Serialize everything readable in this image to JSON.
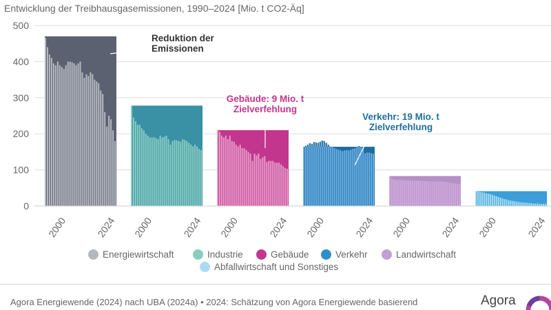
{
  "title": "Entwicklung der Treibhausgasemissionen, 1990–2024 [Mio. t CO2-Äq]",
  "source": "Agora Energiewende (2024) nach UBA (2024a) • 2024: Schätzung von Agora Energiewende basierend",
  "logo": "Agora",
  "chart_data": {
    "type": "bar",
    "title": "Entwicklung der Treibhausgasemissionen, 1990–2024 [Mio. t CO2-Äq]",
    "ylim": [
      0,
      500
    ],
    "yticks": [
      0,
      100,
      200,
      300,
      400,
      500
    ],
    "xticks": [
      "2000",
      "2024"
    ],
    "grid": true,
    "legend_position": "bottom",
    "series": [
      {
        "name": "Energiewirtschaft",
        "color": "#b4b9bf",
        "gap_color": "#5c6172",
        "reference": 470,
        "x": [
          1990,
          1991,
          1992,
          1993,
          1994,
          1995,
          1996,
          1997,
          1998,
          1999,
          2000,
          2001,
          2002,
          2003,
          2004,
          2005,
          2006,
          2007,
          2008,
          2009,
          2010,
          2011,
          2012,
          2013,
          2014,
          2015,
          2016,
          2017,
          2018,
          2019,
          2020,
          2021,
          2022,
          2023,
          2024
        ],
        "values": [
          466,
          440,
          420,
          410,
          395,
          390,
          400,
          390,
          385,
          380,
          390,
          400,
          400,
          398,
          395,
          390,
          395,
          400,
          370,
          355,
          365,
          360,
          370,
          365,
          350,
          345,
          340,
          320,
          310,
          260,
          220,
          250,
          240,
          210,
          180
        ]
      },
      {
        "name": "Industrie",
        "color": "#88cdc0",
        "gap_color": "#3a90a5",
        "reference": 278,
        "x": [
          1990,
          1991,
          1992,
          1993,
          1994,
          1995,
          1996,
          1997,
          1998,
          1999,
          2000,
          2001,
          2002,
          2003,
          2004,
          2005,
          2006,
          2007,
          2008,
          2009,
          2010,
          2011,
          2012,
          2013,
          2014,
          2015,
          2016,
          2017,
          2018,
          2019,
          2020,
          2021,
          2022,
          2023,
          2024
        ],
        "values": [
          278,
          245,
          235,
          225,
          225,
          215,
          210,
          200,
          195,
          190,
          190,
          190,
          188,
          185,
          195,
          190,
          192,
          195,
          185,
          170,
          180,
          183,
          182,
          180,
          178,
          185,
          183,
          180,
          175,
          170,
          165,
          170,
          165,
          158,
          155
        ]
      },
      {
        "name": "Gebäude",
        "color": "#e59cc8",
        "gap_color": "#c2368e",
        "reference": 210,
        "x": [
          1990,
          1991,
          1992,
          1993,
          1994,
          1995,
          1996,
          1997,
          1998,
          1999,
          2000,
          2001,
          2002,
          2003,
          2004,
          2005,
          2006,
          2007,
          2008,
          2009,
          2010,
          2011,
          2012,
          2013,
          2014,
          2015,
          2016,
          2017,
          2018,
          2019,
          2020,
          2021,
          2022,
          2023,
          2024
        ],
        "values": [
          210,
          205,
          195,
          190,
          195,
          185,
          195,
          180,
          178,
          170,
          165,
          170,
          160,
          160,
          155,
          150,
          145,
          125,
          145,
          140,
          145,
          130,
          135,
          138,
          122,
          125,
          125,
          125,
          120,
          120,
          120,
          115,
          110,
          105,
          103
        ]
      },
      {
        "name": "Verkehr",
        "color": "#6cb0e6",
        "gap_color": "#1f6d9e",
        "reference": 164,
        "x": [
          1990,
          1991,
          1992,
          1993,
          1994,
          1995,
          1996,
          1997,
          1998,
          1999,
          2000,
          2001,
          2002,
          2003,
          2004,
          2005,
          2006,
          2007,
          2008,
          2009,
          2010,
          2011,
          2012,
          2013,
          2014,
          2015,
          2016,
          2017,
          2018,
          2019,
          2020,
          2021,
          2022,
          2023,
          2024
        ],
        "values": [
          164,
          167,
          170,
          174,
          172,
          177,
          176,
          175,
          178,
          181,
          180,
          175,
          170,
          165,
          163,
          160,
          158,
          156,
          154,
          152,
          154,
          155,
          154,
          156,
          158,
          160,
          163,
          166,
          163,
          164,
          146,
          148,
          148,
          146,
          145
        ]
      },
      {
        "name": "Landwirtschaft",
        "color": "#cdaadb",
        "gap_color": "#b58fc6",
        "reference": 83,
        "x": [
          1990,
          1991,
          1992,
          1993,
          1994,
          1995,
          1996,
          1997,
          1998,
          1999,
          2000,
          2001,
          2002,
          2003,
          2004,
          2005,
          2006,
          2007,
          2008,
          2009,
          2010,
          2011,
          2012,
          2013,
          2014,
          2015,
          2016,
          2017,
          2018,
          2019,
          2020,
          2021,
          2022,
          2023,
          2024
        ],
        "values": [
          83,
          76,
          73,
          72,
          72,
          72,
          72,
          71,
          71,
          71,
          71,
          71,
          70,
          70,
          70,
          70,
          69,
          69,
          69,
          69,
          68,
          68,
          68,
          68,
          68,
          68,
          67,
          67,
          66,
          65,
          64,
          63,
          62,
          61,
          61
        ]
      },
      {
        "name": "Abfallwirtschaft und Sonstiges",
        "color": "#a8dcf3",
        "gap_color": "#3b9ed8",
        "reference": 41,
        "x": [
          1990,
          1991,
          1992,
          1993,
          1994,
          1995,
          1996,
          1997,
          1998,
          1999,
          2000,
          2001,
          2002,
          2003,
          2004,
          2005,
          2006,
          2007,
          2008,
          2009,
          2010,
          2011,
          2012,
          2013,
          2014,
          2015,
          2016,
          2017,
          2018,
          2019,
          2020,
          2021,
          2022,
          2023,
          2024
        ],
        "values": [
          41,
          40,
          39,
          38,
          37,
          35,
          34,
          33,
          31,
          29,
          27,
          25,
          23,
          21,
          19,
          18,
          16,
          15,
          14,
          13,
          12,
          11,
          10,
          10,
          9,
          9,
          8,
          8,
          7,
          7,
          7,
          6,
          6,
          6,
          6
        ]
      }
    ],
    "annotations": [
      {
        "text": [
          "Reduktion der",
          "Emissionen"
        ],
        "color": "#333333"
      },
      {
        "text": [
          "Gebäude: 9 Mio. t",
          "Zielverfehlung"
        ],
        "color": "#c2368e"
      },
      {
        "text": [
          "Verkehr: 19 Mio. t",
          "Zielverfehlung"
        ],
        "color": "#1f6d9e"
      }
    ]
  }
}
